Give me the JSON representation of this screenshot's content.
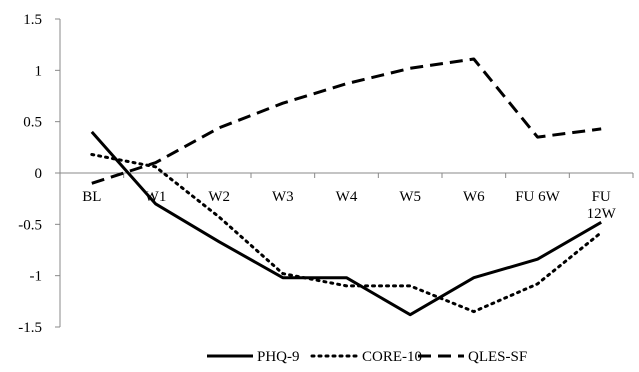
{
  "chart_data": {
    "type": "line",
    "categories": [
      "BL",
      "W1",
      "W2",
      "W3",
      "W4",
      "W5",
      "W6",
      "FU 6W",
      "FU 12W"
    ],
    "category_display": [
      [
        "BL"
      ],
      [
        "W1"
      ],
      [
        "W2"
      ],
      [
        "W3"
      ],
      [
        "W4"
      ],
      [
        "W5"
      ],
      [
        "W6"
      ],
      [
        "FU 6W"
      ],
      [
        "FU",
        "12W"
      ]
    ],
    "ylim": [
      -1.5,
      1.5
    ],
    "yticks": [
      "1.5",
      "1",
      "0.5",
      "0",
      "-0.5",
      "-1",
      "-1.5"
    ],
    "ytick_values": [
      1.5,
      1,
      0.5,
      0,
      -0.5,
      -1,
      -1.5
    ],
    "xlabel": "",
    "ylabel": "",
    "title": "",
    "legend_position": "bottom",
    "grid": false,
    "series": [
      {
        "name": "PHQ-9",
        "style": "solid",
        "color": "#000000",
        "values": [
          0.4,
          -0.3,
          -0.67,
          -1.02,
          -1.02,
          -1.38,
          -1.02,
          -0.84,
          -0.48
        ]
      },
      {
        "name": "CORE-10",
        "style": "dotted",
        "color": "#000000",
        "values": [
          0.18,
          0.06,
          -0.43,
          -0.98,
          -1.1,
          -1.1,
          -1.35,
          -1.08,
          -0.58
        ]
      },
      {
        "name": "QLES-SF",
        "style": "dashed",
        "color": "#000000",
        "values": [
          -0.1,
          0.1,
          0.44,
          0.68,
          0.87,
          1.02,
          1.11,
          0.35,
          0.43
        ]
      }
    ]
  }
}
